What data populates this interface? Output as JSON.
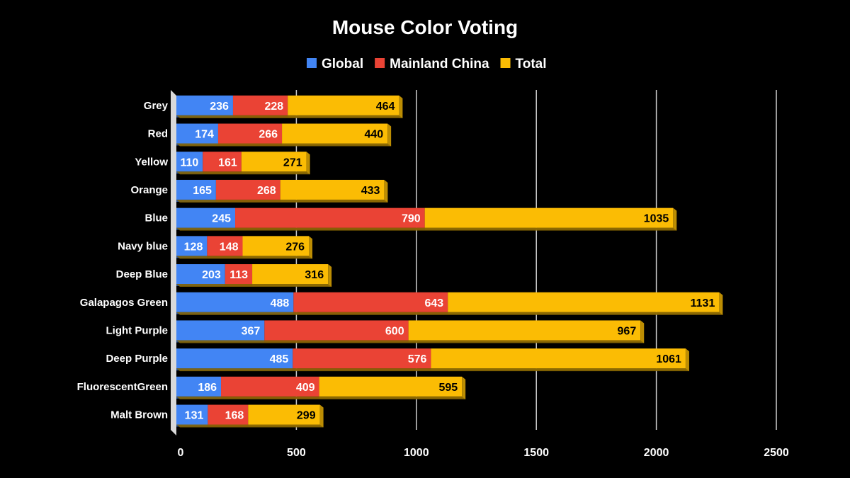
{
  "chart_data": {
    "type": "bar",
    "orientation": "horizontal",
    "stacked": true,
    "title": "Mouse Color Voting",
    "xlabel": "",
    "ylabel": "",
    "xlim": [
      0,
      2500
    ],
    "xticks": [
      0,
      500,
      1000,
      1500,
      2000,
      2500
    ],
    "grid": true,
    "legend_position": "top",
    "categories": [
      "Grey",
      "Red",
      "Yellow",
      "Orange",
      "Blue",
      "Navy blue",
      "Deep Blue",
      "Galapagos Green",
      "Light Purple",
      "Deep Purple",
      "FluorescentGreen",
      "Malt Brown"
    ],
    "series": [
      {
        "name": "Global",
        "color": "#4285f4",
        "label_color": "#ffffff",
        "values": [
          236,
          174,
          110,
          165,
          245,
          128,
          203,
          488,
          367,
          485,
          186,
          131
        ]
      },
      {
        "name": "Mainland China",
        "color": "#ea4335",
        "label_color": "#ffffff",
        "values": [
          228,
          266,
          161,
          268,
          790,
          148,
          113,
          643,
          600,
          576,
          409,
          168
        ]
      },
      {
        "name": "Total",
        "color": "#fbbc04",
        "label_color": "#000000",
        "values": [
          464,
          440,
          271,
          433,
          1035,
          276,
          316,
          1131,
          967,
          1061,
          595,
          299
        ]
      }
    ]
  }
}
